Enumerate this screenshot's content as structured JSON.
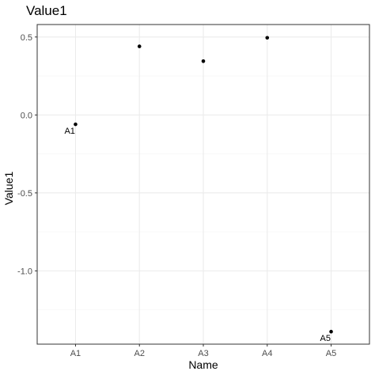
{
  "chart_data": {
    "type": "scatter",
    "title": "Value1",
    "xlabel": "Name",
    "ylabel": "Value1",
    "categories": [
      "A1",
      "A2",
      "A3",
      "A4",
      "A5"
    ],
    "values": [
      -0.06,
      0.44,
      0.345,
      0.495,
      -1.39
    ],
    "point_labels": [
      {
        "category": "A1",
        "text": "A1"
      },
      {
        "category": "A5",
        "text": "A5"
      }
    ],
    "ylim": [
      -1.47,
      0.58
    ],
    "yticks": [
      0.5,
      0.0,
      -0.5,
      -1.0
    ],
    "ytick_labels": [
      "0.5",
      "0.0",
      "-0.5",
      "-1.0"
    ],
    "grid": true,
    "colors": {
      "point": "#000000",
      "grid_major": "#ebebeb",
      "grid_minor": "#f5f5f5",
      "panel_border": "#333333",
      "tick_text": "#4d4d4d"
    }
  }
}
